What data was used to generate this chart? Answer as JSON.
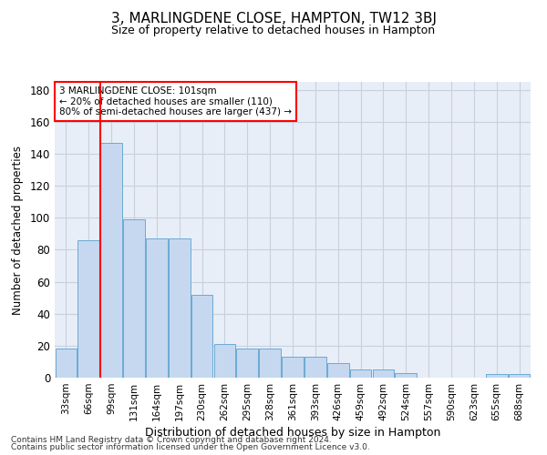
{
  "title": "3, MARLINGDENE CLOSE, HAMPTON, TW12 3BJ",
  "subtitle": "Size of property relative to detached houses in Hampton",
  "xlabel": "Distribution of detached houses by size in Hampton",
  "ylabel": "Number of detached properties",
  "categories": [
    "33sqm",
    "66sqm",
    "99sqm",
    "131sqm",
    "164sqm",
    "197sqm",
    "230sqm",
    "262sqm",
    "295sqm",
    "328sqm",
    "361sqm",
    "393sqm",
    "426sqm",
    "459sqm",
    "492sqm",
    "524sqm",
    "557sqm",
    "590sqm",
    "623sqm",
    "655sqm",
    "688sqm"
  ],
  "values": [
    18,
    86,
    147,
    99,
    87,
    87,
    52,
    21,
    18,
    18,
    13,
    13,
    9,
    5,
    5,
    3,
    0,
    0,
    0,
    2,
    2
  ],
  "bar_color": "#c5d8f0",
  "bar_edge_color": "#6aaad4",
  "red_line_index": 2,
  "annotation_line1": "3 MARLINGDENE CLOSE: 101sqm",
  "annotation_line2": "← 20% of detached houses are smaller (110)",
  "annotation_line3": "80% of semi-detached houses are larger (437) →",
  "ylim": [
    0,
    185
  ],
  "yticks": [
    0,
    20,
    40,
    60,
    80,
    100,
    120,
    140,
    160,
    180
  ],
  "bg_color": "#e8eef7",
  "grid_color": "#c8d0de",
  "footer_line1": "Contains HM Land Registry data © Crown copyright and database right 2024.",
  "footer_line2": "Contains public sector information licensed under the Open Government Licence v3.0."
}
